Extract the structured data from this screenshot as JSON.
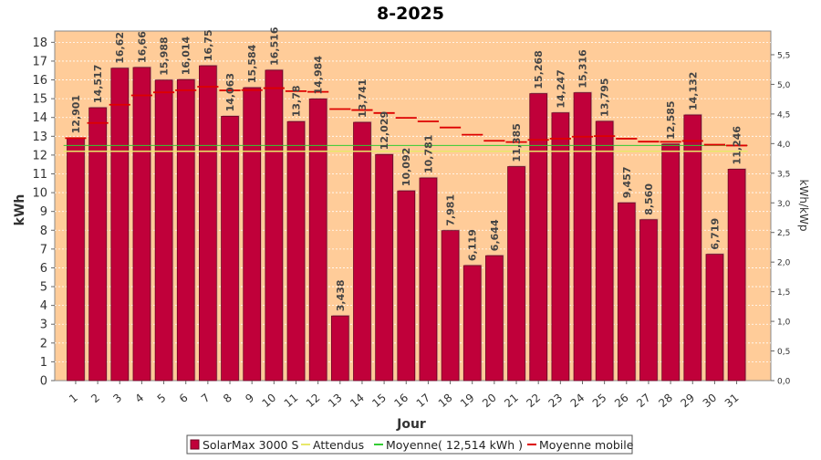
{
  "chart_data": {
    "type": "bar",
    "title": "8-2025",
    "xlabel": "Jour",
    "ylabel": "kWh",
    "y2label": "kWh/kWp",
    "ylim": [
      0,
      18.6
    ],
    "y2lim": [
      0,
      5.9
    ],
    "yticks": [
      0,
      1,
      2,
      3,
      4,
      5,
      6,
      7,
      8,
      9,
      10,
      11,
      12,
      13,
      14,
      15,
      16,
      17,
      18
    ],
    "y2ticks": [
      "0,0",
      "0,5",
      "1,0",
      "1,5",
      "2,0",
      "2,5",
      "3,0",
      "3,5",
      "4,0",
      "4,5",
      "5,0",
      "5,5"
    ],
    "categories": [
      "1",
      "2",
      "3",
      "4",
      "5",
      "6",
      "7",
      "8",
      "9",
      "10",
      "11",
      "12",
      "13",
      "14",
      "15",
      "16",
      "17",
      "18",
      "19",
      "20",
      "21",
      "22",
      "23",
      "24",
      "25",
      "26",
      "27",
      "28",
      "29",
      "30",
      "31"
    ],
    "series": [
      {
        "name": "SolarMax 3000 S",
        "values": [
          12.901,
          14.517,
          16.62,
          16.66,
          15.988,
          16.014,
          16.75,
          14.063,
          15.584,
          16.516,
          13.78,
          14.984,
          3.438,
          13.741,
          12.029,
          10.092,
          10.781,
          7.981,
          6.119,
          6.644,
          11.385,
          15.268,
          14.247,
          15.316,
          13.795,
          9.457,
          8.56,
          12.585,
          14.132,
          6.719,
          11.246
        ],
        "labels": [
          "12,901",
          "14,517",
          "16,62",
          "16,66",
          "15,988",
          "16,014",
          "16,75",
          "14,063",
          "15,584",
          "16,516",
          "13,78",
          "14,984",
          "3,438",
          "13,741",
          "12,029",
          "10,092",
          "10,781",
          "7,981",
          "6,119",
          "6,644",
          "11,385",
          "15,268",
          "14,247",
          "15,316",
          "13,795",
          "9,457",
          "8,560",
          "12,585",
          "14,132",
          "6,719",
          "11,246"
        ]
      },
      {
        "name": "Moyenne mobile",
        "values": [
          12.901,
          13.709,
          14.679,
          15.175,
          15.337,
          15.45,
          15.636,
          15.44,
          15.456,
          15.562,
          15.4,
          15.366,
          14.448,
          14.397,
          14.239,
          13.979,
          13.791,
          13.468,
          13.081,
          12.759,
          12.693,
          12.81,
          12.872,
          12.977,
          13.01,
          12.873,
          12.714,
          12.704,
          12.752,
          12.551,
          12.509
        ]
      }
    ],
    "moyenne": {
      "name": "Moyenne( 12,514 kWh )",
      "value": 12.514
    },
    "attendus": {
      "name": "Attendus",
      "value": 12.2
    },
    "legend_position": "bottom",
    "grid": true,
    "colors": {
      "bar": "#c0003a",
      "bar_edge": "#6b0020",
      "plot_bg": "#ffcc99",
      "moyenne": "#33cc33",
      "attendus": "#e8e86a",
      "mobile": "#dd0000"
    }
  }
}
